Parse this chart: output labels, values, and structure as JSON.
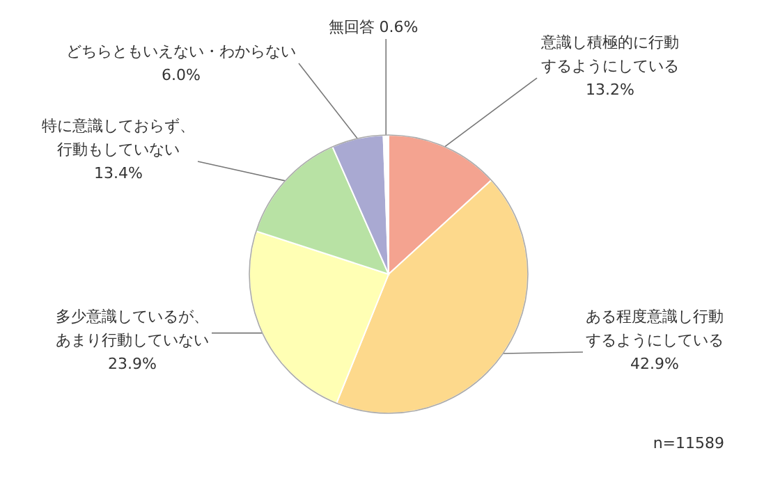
{
  "chart_data": {
    "type": "pie",
    "categories": [
      "意識し積極的に行動するようにしている",
      "ある程度意識し行動するようにしている",
      "多少意識しているが、あまり行動していない",
      "特に意識しておらず、行動もしていない",
      "どちらともいえない・わからない",
      "無回答"
    ],
    "values": [
      13.2,
      42.9,
      23.9,
      13.4,
      6.0,
      0.6
    ],
    "value_labels": [
      "13.2%",
      "42.9%",
      "23.9%",
      "13.4%",
      "6.0%",
      "0.6%"
    ],
    "colors": [
      "#f4a390",
      "#fdd98c",
      "#ffffb4",
      "#b8e2a4",
      "#a9a9d2",
      "#ffffff"
    ],
    "annotations": [
      "n=11589"
    ]
  }
}
